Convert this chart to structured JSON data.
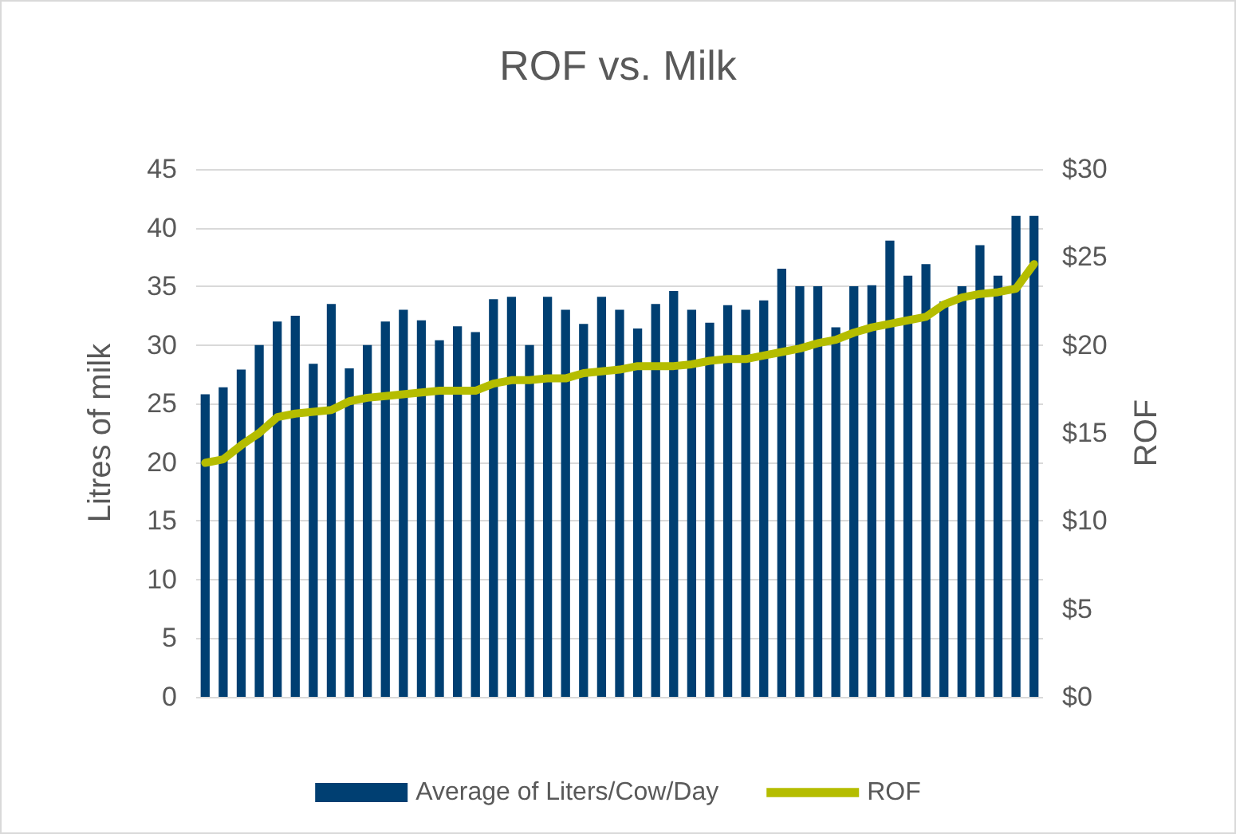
{
  "chart_data": {
    "type": "bar",
    "title": "ROF vs. Milk",
    "ylabel": "Litres of milk",
    "y2label": "ROF",
    "categories": [
      null,
      null,
      null,
      null,
      null,
      null,
      null,
      null,
      null,
      null,
      null,
      null,
      null,
      null,
      null,
      null,
      null,
      null,
      null,
      null,
      null,
      null,
      null,
      null,
      null,
      null,
      null,
      null,
      null,
      null,
      null,
      null,
      null,
      null,
      null,
      null,
      null,
      null,
      null,
      null,
      null,
      null,
      null,
      null,
      null,
      null,
      null
    ],
    "series": [
      {
        "name": "Average of Liters/Cow/Day",
        "color": "#003f72",
        "values": [
          25.8,
          26.4,
          27.9,
          30,
          32,
          32.5,
          28.4,
          33.5,
          28,
          30,
          32,
          33,
          32.1,
          30.4,
          31.6,
          31.1,
          33.9,
          34.1,
          30,
          34.1,
          33,
          31.8,
          34.1,
          33,
          31.4,
          33.5,
          34.6,
          33,
          31.9,
          33.4,
          33,
          33.8,
          36.5,
          35,
          35,
          31.5,
          35,
          35.1,
          38.9,
          35.9,
          36.9,
          33.7,
          35,
          38.5,
          35.9,
          41,
          41
        ]
      },
      {
        "name": "ROF",
        "type": "line",
        "axis": "y2",
        "color": "#b5bd00",
        "values": [
          13.3,
          13.5,
          14.3,
          15,
          15.9,
          16.1,
          16.2,
          16.3,
          16.8,
          17,
          17.1,
          17.2,
          17.3,
          17.4,
          17.4,
          17.4,
          17.8,
          18,
          18,
          18.1,
          18.1,
          18.4,
          18.5,
          18.6,
          18.8,
          18.8,
          18.8,
          18.9,
          19.1,
          19.2,
          19.2,
          19.4,
          19.6,
          19.8,
          20.1,
          20.3,
          20.7,
          21,
          21.2,
          21.4,
          21.6,
          22.3,
          22.7,
          22.9,
          23,
          23.2,
          24.6
        ]
      }
    ],
    "ylim": [
      0,
      45
    ],
    "yticks": [
      0,
      5,
      10,
      15,
      20,
      25,
      30,
      35,
      40,
      45
    ],
    "y2lim": [
      0,
      30
    ],
    "y2ticks": [
      {
        "value": 0,
        "label": "$0"
      },
      {
        "value": 5,
        "label": "$5"
      },
      {
        "value": 10,
        "label": "$10"
      },
      {
        "value": 15,
        "label": "$15"
      },
      {
        "value": 20,
        "label": "$20"
      },
      {
        "value": 25,
        "label": "$25"
      },
      {
        "value": 30,
        "label": "$30"
      }
    ],
    "grid": "y",
    "legend": "bottom",
    "marker": "none",
    "line_style": "solid"
  }
}
